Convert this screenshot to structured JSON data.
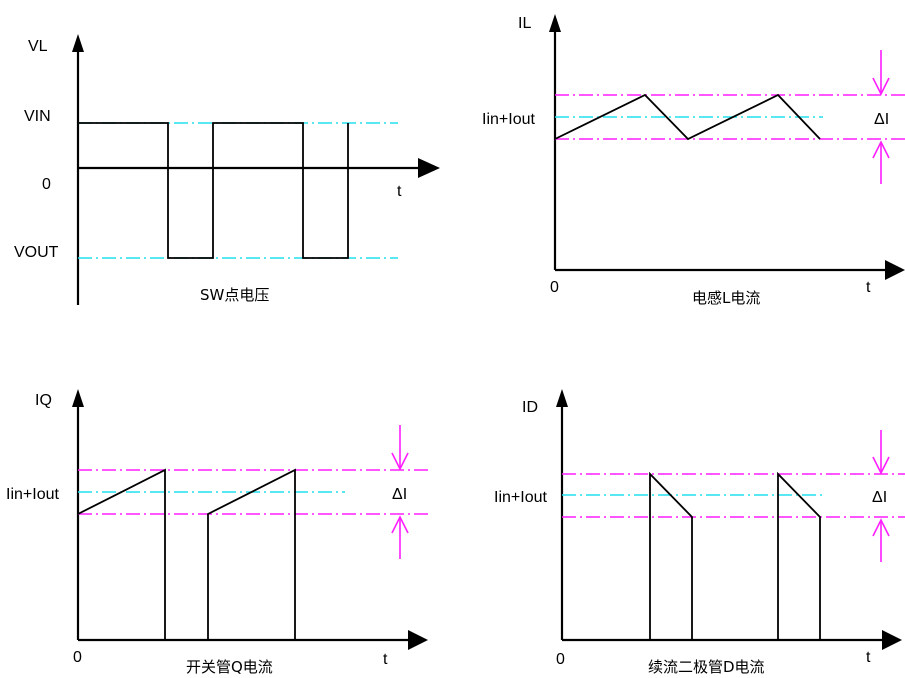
{
  "panels": {
    "sw": {
      "y_label": "VL",
      "levels": [
        "VIN",
        "0",
        "VOUT"
      ],
      "x_label": "t",
      "caption": "SW点电压"
    },
    "il": {
      "y_label": "IL",
      "origin": "0",
      "x_label": "t",
      "mid_label": "Iin+Iout",
      "delta_label": "ΔI",
      "caption": "电感L电流"
    },
    "iq": {
      "y_label": "IQ",
      "origin": "0",
      "x_label": "t",
      "mid_label": "Iin+Iout",
      "delta_label": "ΔI",
      "caption": "开关管Q电流"
    },
    "id": {
      "y_label": "ID",
      "origin": "0",
      "x_label": "t",
      "mid_label": "Iin+Iout",
      "delta_label": "ΔI",
      "caption": "续流二极管D电流"
    }
  },
  "colors": {
    "reference_line": "#22e0ee",
    "ripple_bounds": "#ff1eff",
    "waveform": "#000000"
  }
}
